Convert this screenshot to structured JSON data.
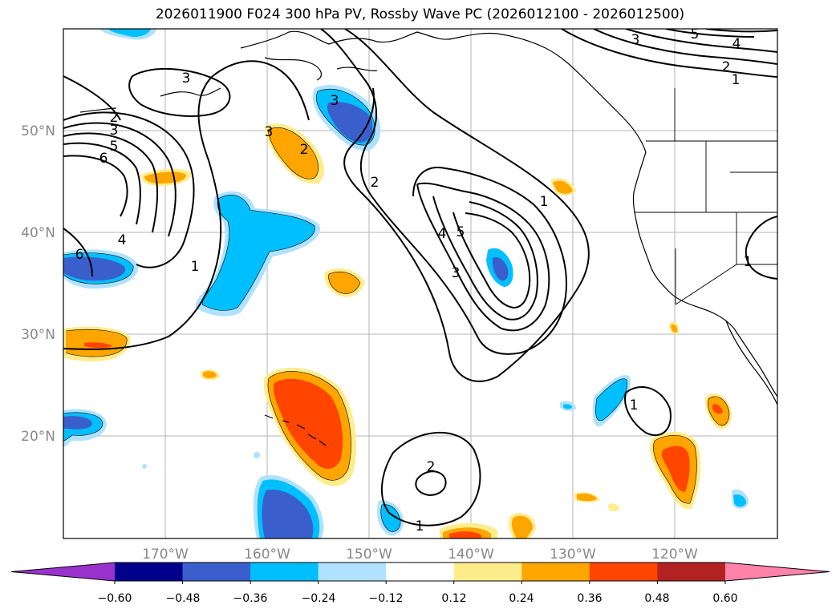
{
  "title": "2026011900 F024 300 hPa PV, Rossby Wave PC (2026012100 - 2026012500)",
  "lat_labels": [
    "50°N",
    "40°N",
    "30°N",
    "20°N"
  ],
  "lon_labels": [
    "170°W",
    "160°W",
    "150°W",
    "140°W",
    "130°W",
    "120°W"
  ],
  "contour_labels": [
    "3",
    "2",
    "3",
    "5",
    "6",
    "4",
    "6",
    "1",
    "3",
    "2",
    "3",
    "2",
    "4",
    "5",
    "3",
    "1",
    "3",
    "5",
    "4",
    "2",
    "1",
    "1",
    "2",
    "1",
    "1"
  ],
  "colorbar": {
    "ticks": [
      "−0.60",
      "−0.48",
      "−0.36",
      "−0.24",
      "−0.12",
      "0.12",
      "0.24",
      "0.36",
      "0.48",
      "0.60"
    ],
    "colors": [
      "#9932CC",
      "#00008B",
      "#3A5FCD",
      "#00BFFF",
      "#B0E2FF",
      "#FFFFFF",
      "#FFEC8B",
      "#FFA500",
      "#FF4500",
      "#B22222",
      "#FF82AB"
    ]
  }
}
